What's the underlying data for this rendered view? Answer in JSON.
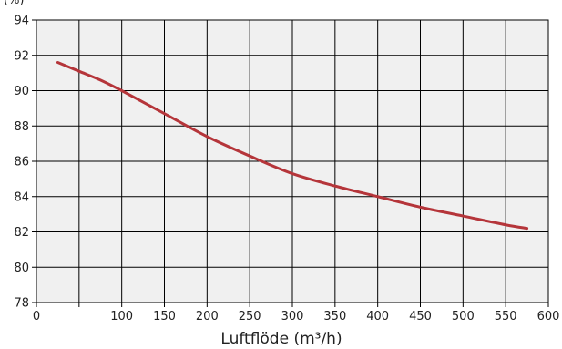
{
  "chart_data": {
    "type": "line",
    "title": "",
    "top_label_partial": "(%)",
    "xlabel": "Luftflöde (m³/h)",
    "ylabel": "",
    "xlim": [
      0,
      600
    ],
    "ylim": [
      78,
      94
    ],
    "x_ticks": [
      0,
      50,
      100,
      150,
      200,
      250,
      300,
      350,
      400,
      450,
      500,
      550,
      600
    ],
    "x_tick_labels": [
      "0",
      "",
      "100",
      "150",
      "200",
      "250",
      "300",
      "350",
      "400",
      "450",
      "500",
      "550",
      "600"
    ],
    "y_ticks": [
      78,
      80,
      82,
      84,
      86,
      88,
      90,
      92,
      94
    ],
    "y_tick_labels": [
      "78",
      "80",
      "82",
      "84",
      "86",
      "88",
      "90",
      "92",
      "94"
    ],
    "grid": true,
    "colors": {
      "plot_background": "#f0f0f0",
      "grid": "#000000",
      "series": "#b5353a"
    },
    "series": [
      {
        "name": "",
        "x": [
          25,
          50,
          75,
          100,
          150,
          200,
          250,
          300,
          350,
          400,
          450,
          500,
          550,
          575
        ],
        "y": [
          91.6,
          91.1,
          90.6,
          90.0,
          88.7,
          87.4,
          86.3,
          85.3,
          84.6,
          84.0,
          83.4,
          82.9,
          82.4,
          82.2
        ]
      }
    ]
  }
}
